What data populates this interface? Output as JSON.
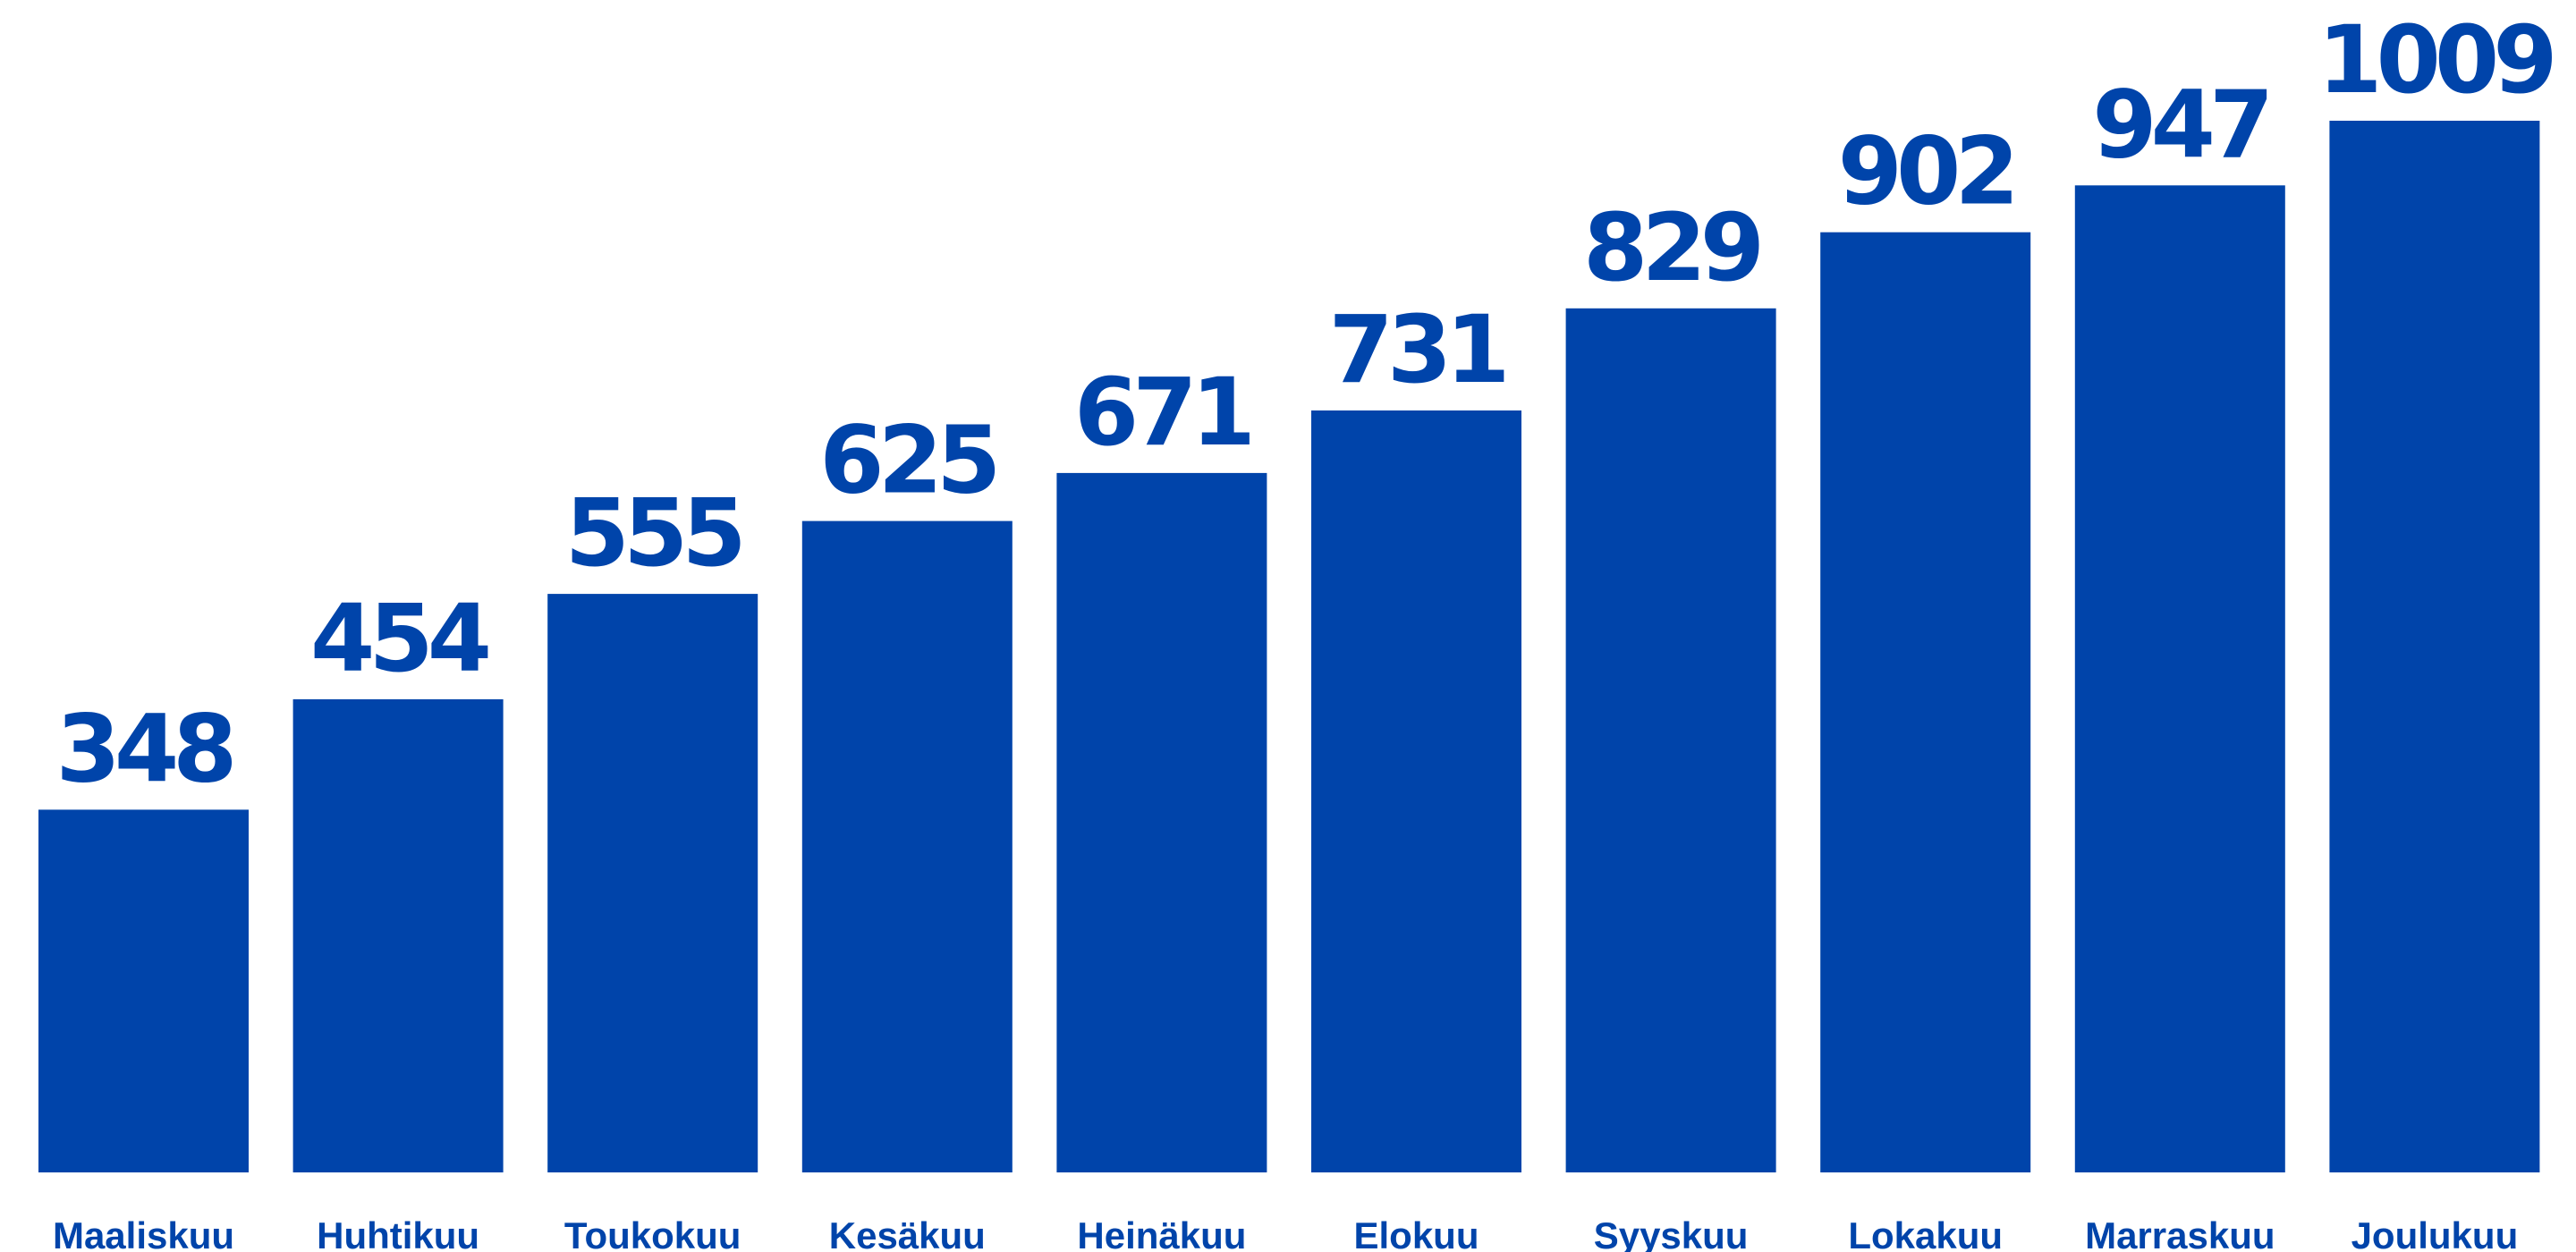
{
  "chart_data": {
    "type": "bar",
    "categories": [
      "Maaliskuu",
      "Huhtikuu",
      "Toukokuu",
      "Kesäkuu",
      "Heinäkuu",
      "Elokuu",
      "Syyskuu",
      "Lokakuu",
      "Marraskuu",
      "Joulukuu"
    ],
    "values": [
      348,
      454,
      555,
      625,
      671,
      731,
      829,
      902,
      947,
      1009
    ],
    "ylim": [
      0,
      1009
    ],
    "grid": false,
    "legend": "none",
    "data_labels": true
  },
  "colors": {
    "bar": "#0044aa",
    "text": "#0044aa",
    "background": "#ffffff"
  }
}
